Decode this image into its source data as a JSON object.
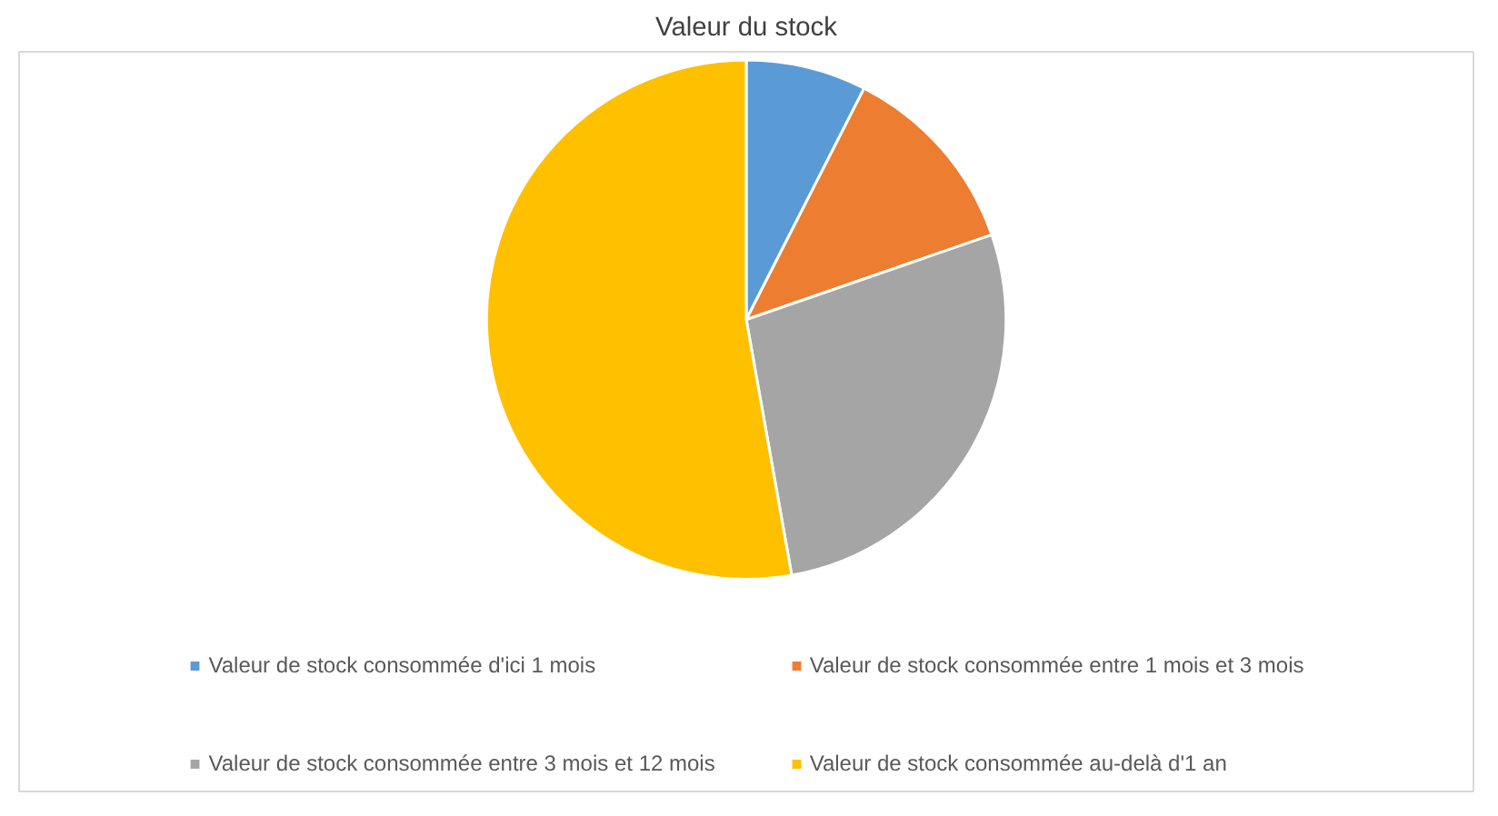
{
  "chart_data": {
    "type": "pie",
    "title": "Valeur du stock",
    "categories": [
      "Valeur de stock consommée d'ici 1 mois",
      "Valeur de stock consommée entre 1 mois et 3 mois",
      "Valeur de stock consommée entre 3 mois et 12 mois",
      "Valeur de stock consommée au-delà d'1 an"
    ],
    "values": [
      7.5,
      12.2,
      27.5,
      52.8
    ],
    "colors": [
      "#5b9bd5",
      "#ed7d31",
      "#a5a5a5",
      "#ffc000"
    ],
    "legend": "bottom"
  }
}
